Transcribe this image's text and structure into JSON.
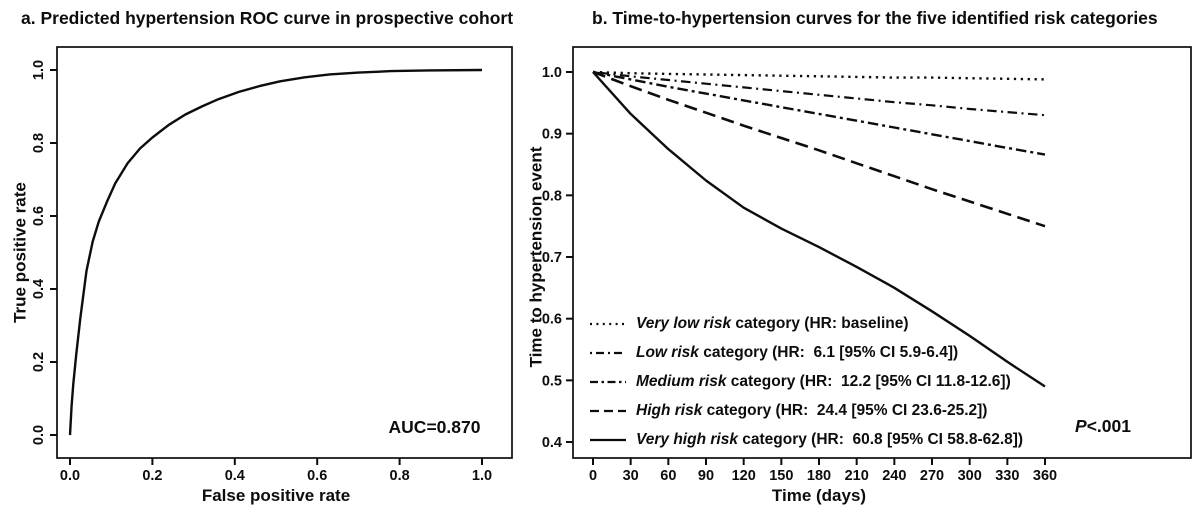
{
  "figure": {
    "background": "#ffffff",
    "ink_color": "#0d0d0d"
  },
  "chart_data": [
    {
      "id": "roc",
      "type": "line",
      "title": "a. Predicted hypertension ROC curve in prospective cohort",
      "xlabel": "False positive rate",
      "ylabel": "True positive rate",
      "xlim": [
        0.0,
        1.0
      ],
      "ylim": [
        0.0,
        1.0
      ],
      "xticks": [
        "0.0",
        "0.2",
        "0.4",
        "0.6",
        "0.8",
        "1.0"
      ],
      "yticks": [
        "0.0",
        "0.2",
        "0.4",
        "0.6",
        "0.8",
        "1.0"
      ],
      "grid": false,
      "legend_position": "none",
      "annotation": "AUC=0.870",
      "series": [
        {
          "name": "ROC curve",
          "style": "solid",
          "points": [
            [
              0,
              0
            ],
            [
              0.004,
              0.08
            ],
            [
              0.008,
              0.14
            ],
            [
              0.015,
              0.22
            ],
            [
              0.025,
              0.32
            ],
            [
              0.04,
              0.45
            ],
            [
              0.055,
              0.53
            ],
            [
              0.07,
              0.585
            ],
            [
              0.09,
              0.64
            ],
            [
              0.11,
              0.69
            ],
            [
              0.14,
              0.745
            ],
            [
              0.17,
              0.785
            ],
            [
              0.2,
              0.815
            ],
            [
              0.24,
              0.85
            ],
            [
              0.28,
              0.878
            ],
            [
              0.32,
              0.9
            ],
            [
              0.36,
              0.92
            ],
            [
              0.41,
              0.94
            ],
            [
              0.46,
              0.956
            ],
            [
              0.51,
              0.969
            ],
            [
              0.57,
              0.98
            ],
            [
              0.63,
              0.988
            ],
            [
              0.7,
              0.993
            ],
            [
              0.78,
              0.997
            ],
            [
              0.87,
              0.999
            ],
            [
              1.0,
              1.0
            ]
          ]
        }
      ]
    },
    {
      "id": "time-to-hypertension",
      "type": "line",
      "title": "b. Time-to-hypertension curves for the five identified risk categories",
      "xlabel": "Time (days)",
      "ylabel": "Time to hypertension event",
      "xlim": [
        0,
        360
      ],
      "ylim": [
        0.4,
        1.0
      ],
      "xticks": [
        "0",
        "30",
        "60",
        "90",
        "120",
        "150",
        "180",
        "210",
        "240",
        "270",
        "300",
        "330",
        "360"
      ],
      "yticks": [
        "0.4",
        "0.5",
        "0.6",
        "0.7",
        "0.8",
        "0.9",
        "1.0"
      ],
      "grid": false,
      "legend_position": "bottom-left-inside",
      "p_label": "P",
      "p_value": "<.001",
      "x": [
        0,
        30,
        60,
        90,
        120,
        150,
        180,
        210,
        240,
        270,
        300,
        330,
        360
      ],
      "series": [
        {
          "name": "Very low risk",
          "label_rest": " category (HR: baseline)",
          "style": "dotted",
          "values": [
            1.0,
            0.998,
            0.997,
            0.996,
            0.995,
            0.994,
            0.993,
            0.992,
            0.991,
            0.991,
            0.99,
            0.989,
            0.988
          ]
        },
        {
          "name": "Low risk",
          "label_rest": " category (HR:  6.1 [95% CI 5.9-6.4])",
          "style": "dashdot",
          "values": [
            1.0,
            0.993,
            0.987,
            0.981,
            0.975,
            0.969,
            0.963,
            0.957,
            0.951,
            0.946,
            0.94,
            0.935,
            0.93
          ]
        },
        {
          "name": "Medium risk",
          "label_rest": " category (HR:  12.2 [95% CI 11.8-12.6])",
          "style": "twodash",
          "values": [
            1.0,
            0.988,
            0.976,
            0.965,
            0.954,
            0.943,
            0.932,
            0.921,
            0.91,
            0.899,
            0.888,
            0.877,
            0.866
          ]
        },
        {
          "name": "High risk",
          "label_rest": " category (HR:  24.4 [95% CI 23.6-25.2])",
          "style": "dashed",
          "values": [
            1.0,
            0.977,
            0.955,
            0.934,
            0.913,
            0.893,
            0.873,
            0.852,
            0.831,
            0.81,
            0.79,
            0.77,
            0.75
          ]
        },
        {
          "name": "Very high risk",
          "label_rest": " category (HR:  60.8 [95% CI 58.8-62.8])",
          "style": "solid",
          "values": [
            1.0,
            0.932,
            0.875,
            0.824,
            0.78,
            0.746,
            0.716,
            0.684,
            0.65,
            0.612,
            0.572,
            0.53,
            0.49
          ]
        }
      ]
    }
  ]
}
